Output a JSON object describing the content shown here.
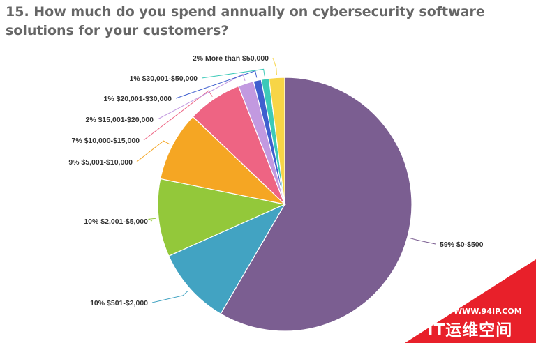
{
  "title": "15. How much do you spend annually on cybersecurity software solutions for your customers?",
  "chart_data": {
    "type": "pie",
    "title": "15. How much do you spend annually on cybersecurity software solutions for your customers?",
    "slices": [
      {
        "label": "$0-$500",
        "value": 59,
        "display": "59% $0-$500",
        "color": "#7b5e91"
      },
      {
        "label": "$501-$2,000",
        "value": 10,
        "display": "10% $501-$2,000",
        "color": "#42a3c2"
      },
      {
        "label": "$2,001-$5,000",
        "value": 10,
        "display": "10% $2,001-$5,000",
        "color": "#93c83a"
      },
      {
        "label": "$5,001-$10,000",
        "value": 9,
        "display": "9% $5,001-$10,000",
        "color": "#f5a623"
      },
      {
        "label": "$10,000-$15,000",
        "value": 7,
        "display": "7% $10,000-$15,000",
        "color": "#ee6483"
      },
      {
        "label": "$15,001-$20,000",
        "value": 2,
        "display": "2% $15,001-$20,000",
        "color": "#c299e0"
      },
      {
        "label": "$20,001-$30,000",
        "value": 1,
        "display": "1% $20,001-$30,000",
        "color": "#3f5fcf"
      },
      {
        "label": "$30,001-$50,000",
        "value": 1,
        "display": "1% $30,001-$50,000",
        "color": "#3cc9b8"
      },
      {
        "label": "More than $50,000",
        "value": 2,
        "display": "2% More than $50,000",
        "color": "#f7d547"
      }
    ],
    "start_angle_deg": 0,
    "direction": "clockwise",
    "legend": "none"
  },
  "watermark": {
    "url": "WWW.94IP.COM",
    "brand": "IT运维空间",
    "color": "#e8202a"
  }
}
